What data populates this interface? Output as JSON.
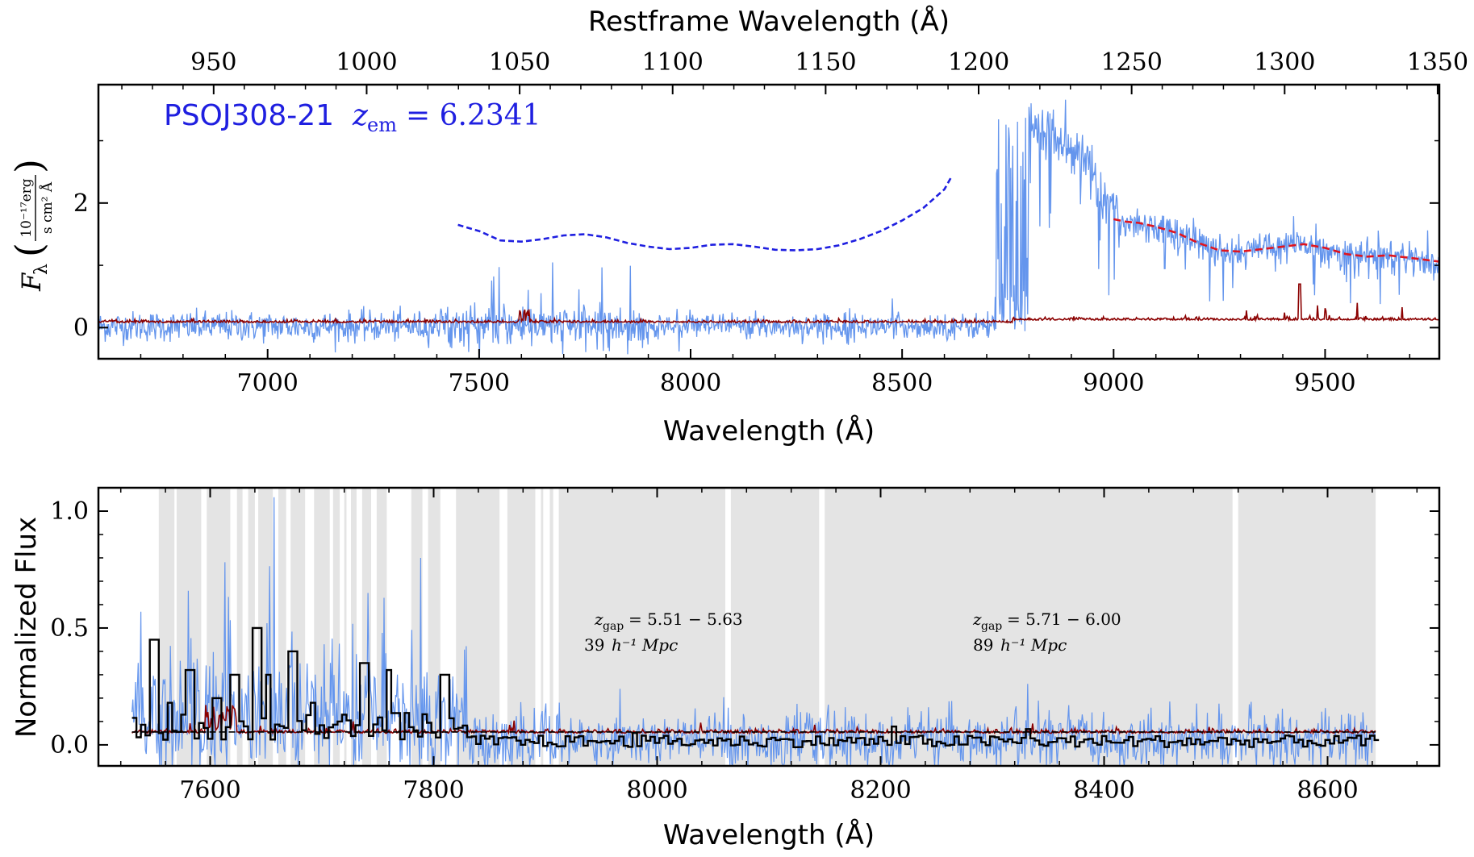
{
  "chart_data": [
    {
      "type": "line",
      "annotation": {
        "text_main": "PSOJ308-21",
        "text_z": "z",
        "text_sub": "em",
        "text_val": "= 6.2341",
        "color": "#1f1fe0"
      },
      "xlabel": "Wavelength (Å)",
      "x2label": "Restframe Wavelength (Å)",
      "ylabel_main": "F",
      "ylabel_sub": "λ",
      "ylabel_unit_num": "10⁻¹⁷erg",
      "ylabel_unit_den": "s cm² Å",
      "xlim": [
        6600,
        9770
      ],
      "ylim": [
        -0.5,
        3.9
      ],
      "xticks": [
        7000,
        7500,
        8000,
        8500,
        9000,
        9500
      ],
      "x2ticks": [
        950,
        1000,
        1050,
        1100,
        1150,
        1200,
        1250,
        1300,
        1350
      ],
      "yticks": [
        0,
        2
      ],
      "z_em": 6.2341,
      "colors": {
        "flux": "#6495ed",
        "error": "#8b0000",
        "continuum_blue": "#1f1fe0",
        "continuum_red": "#e0141e"
      },
      "continuum_blue": {
        "x": [
          7450,
          7500,
          7550,
          7600,
          7650,
          7700,
          7750,
          7800,
          7850,
          7900,
          7950,
          8000,
          8050,
          8100,
          8150,
          8200,
          8250,
          8300,
          8350,
          8400,
          8450,
          8500,
          8550,
          8600,
          8615
        ],
        "y": [
          1.65,
          1.55,
          1.4,
          1.38,
          1.42,
          1.48,
          1.5,
          1.45,
          1.36,
          1.3,
          1.26,
          1.28,
          1.33,
          1.34,
          1.3,
          1.25,
          1.24,
          1.26,
          1.32,
          1.42,
          1.55,
          1.72,
          1.92,
          2.22,
          2.4
        ]
      },
      "continuum_red": {
        "x": [
          9000,
          9030,
          9060,
          9100,
          9150,
          9200,
          9250,
          9300,
          9350,
          9400,
          9450,
          9500,
          9550,
          9600,
          9650,
          9700,
          9770
        ],
        "y": [
          1.74,
          1.7,
          1.68,
          1.62,
          1.52,
          1.36,
          1.24,
          1.22,
          1.26,
          1.3,
          1.34,
          1.28,
          1.18,
          1.14,
          1.16,
          1.12,
          1.06
        ]
      }
    },
    {
      "type": "line",
      "xlabel": "Wavelength (Å)",
      "ylabel": "Normalized Flux",
      "xlim": [
        7500,
        8700
      ],
      "ylim": [
        -0.09,
        1.1
      ],
      "xticks": [
        7600,
        7800,
        8000,
        8200,
        8400,
        8600
      ],
      "yticks": [
        0.0,
        0.5,
        1.0
      ],
      "ytick_labels": [
        "0.0",
        "0.5",
        "1.0"
      ],
      "colors": {
        "flux": "#6495ed",
        "error": "#8b0000",
        "binned": "#000000",
        "gap_shade": "#e4e4e4"
      },
      "gaps": [
        {
          "z_label": "z",
          "sub": "gap",
          "range": "= 5.51 − 5.63",
          "size": "39",
          "unit": "h⁻¹ Mpc"
        },
        {
          "z_label": "z",
          "sub": "gap",
          "range": "= 5.71 − 6.00",
          "size": "89",
          "unit": "h⁻¹ Mpc"
        }
      ],
      "shaded_regions": [
        [
          7554,
          7568
        ],
        [
          7570,
          7592
        ],
        [
          7597,
          7618
        ],
        [
          7624,
          7629
        ],
        [
          7634,
          7640
        ],
        [
          7643,
          7656
        ],
        [
          7661,
          7668
        ],
        [
          7672,
          7685
        ],
        [
          7693,
          7707
        ],
        [
          7710,
          7716
        ],
        [
          7720,
          7722
        ],
        [
          7726,
          7731
        ],
        [
          7736,
          7744
        ],
        [
          7749,
          7758
        ],
        [
          7780,
          7790
        ],
        [
          7795,
          7806
        ],
        [
          7820,
          7859
        ],
        [
          7866,
          7891
        ],
        [
          7896,
          7898
        ],
        [
          7904,
          7907
        ],
        [
          7912,
          8061
        ],
        [
          8066,
          8145
        ],
        [
          8150,
          8515
        ],
        [
          8520,
          8643
        ]
      ],
      "continuum_level": 0.055
    }
  ]
}
